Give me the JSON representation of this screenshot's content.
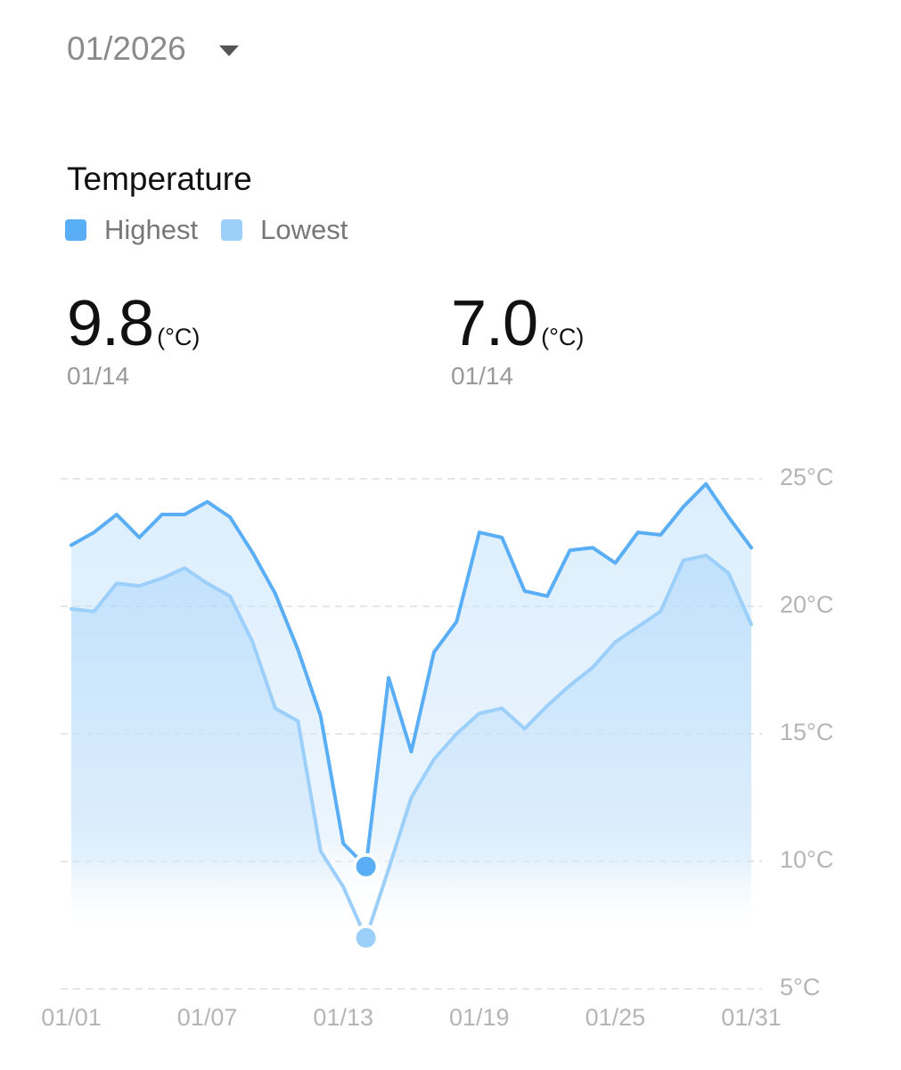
{
  "header": {
    "month": "01/2026"
  },
  "summary": [
    {
      "value": "9.8",
      "unit": "(°C)",
      "date": "01/14"
    },
    {
      "value": "7.0",
      "unit": "(°C)",
      "date": "01/14"
    }
  ],
  "chart_data": {
    "type": "line",
    "title": "Temperature",
    "categories": [
      "01/01",
      null,
      null,
      null,
      null,
      null,
      "01/07",
      null,
      null,
      null,
      null,
      null,
      "01/13",
      null,
      null,
      null,
      null,
      null,
      "01/19",
      null,
      null,
      null,
      null,
      null,
      "01/25",
      null,
      null,
      null,
      null,
      null,
      "01/31"
    ],
    "series": [
      {
        "name": "Highest",
        "color": "#5aaef5",
        "values": [
          22.4,
          22.9,
          23.6,
          22.7,
          23.6,
          23.6,
          24.1,
          23.5,
          22.1,
          20.5,
          18.3,
          15.7,
          10.7,
          9.8,
          17.2,
          14.3,
          18.2,
          19.4,
          22.9,
          22.7,
          20.6,
          20.4,
          22.2,
          22.3,
          21.7,
          22.9,
          22.8,
          23.9,
          24.8,
          23.5,
          22.3
        ]
      },
      {
        "name": "Lowest",
        "color": "#9ccffa",
        "values": [
          19.9,
          19.8,
          20.9,
          20.8,
          21.1,
          21.5,
          20.9,
          20.4,
          18.6,
          16.0,
          15.5,
          10.4,
          9.0,
          7.0,
          9.7,
          12.5,
          14.0,
          15.0,
          15.8,
          16.0,
          15.2,
          16.1,
          16.9,
          17.6,
          18.6,
          19.2,
          19.8,
          21.8,
          22.0,
          21.3,
          19.3
        ]
      }
    ],
    "ylim": [
      5,
      25
    ],
    "yticks": [
      {
        "value": 5,
        "label": "5°C"
      },
      {
        "value": 10,
        "label": "10°C"
      },
      {
        "value": 15,
        "label": "15°C"
      },
      {
        "value": 20,
        "label": "20°C"
      },
      {
        "value": 25,
        "label": "25°C"
      }
    ],
    "grid": true
  }
}
